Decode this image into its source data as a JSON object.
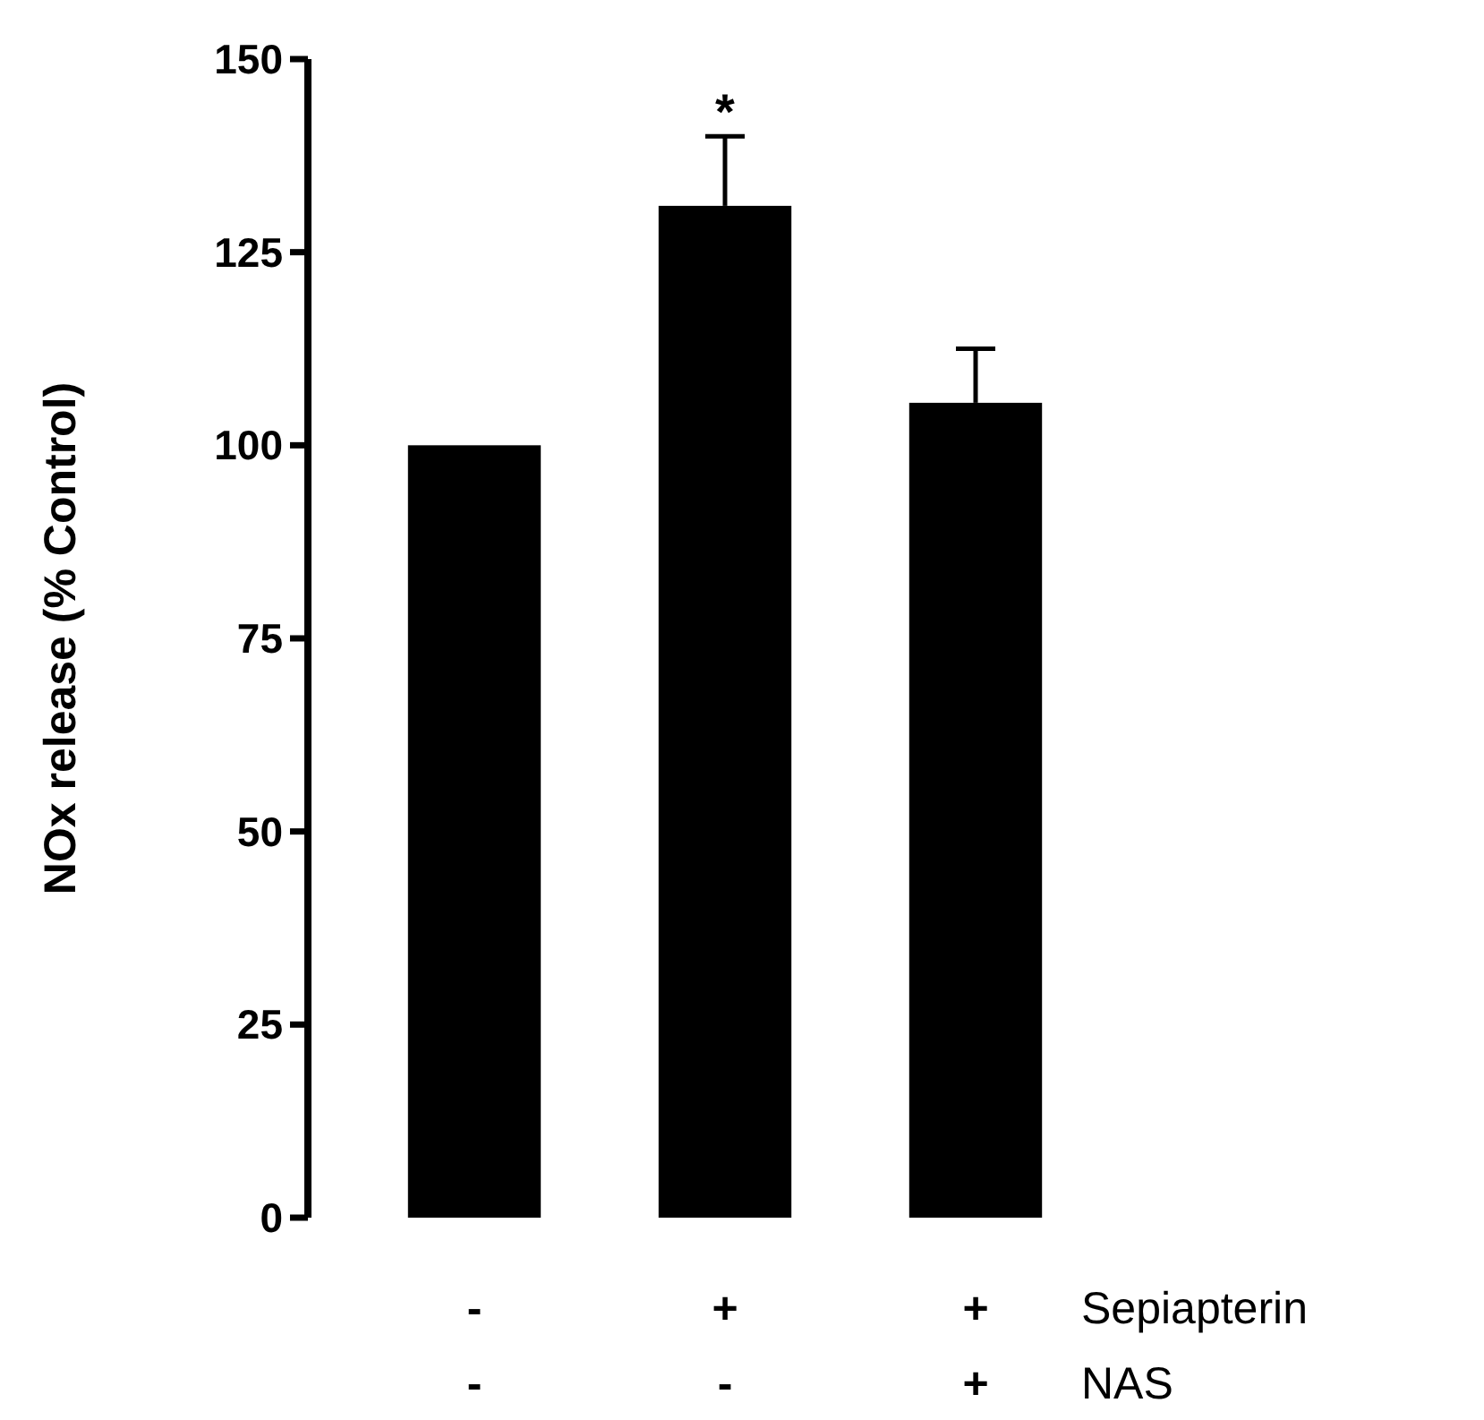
{
  "chart_data": {
    "type": "bar",
    "ylabel": "NOx release (% Control)",
    "categories": [
      "-\n-",
      "+\n-",
      "+\n+"
    ],
    "values": [
      100,
      131,
      105.5
    ],
    "errors": [
      null,
      [
        131,
        140
      ],
      [
        105.5,
        112.5
      ]
    ],
    "color": "#000000",
    "ylim": [
      0,
      150
    ],
    "yticks": [
      0,
      25,
      50,
      75,
      100,
      125,
      150
    ],
    "annotations": [
      "*",
      "Sepiapterin",
      "NAS"
    ]
  }
}
